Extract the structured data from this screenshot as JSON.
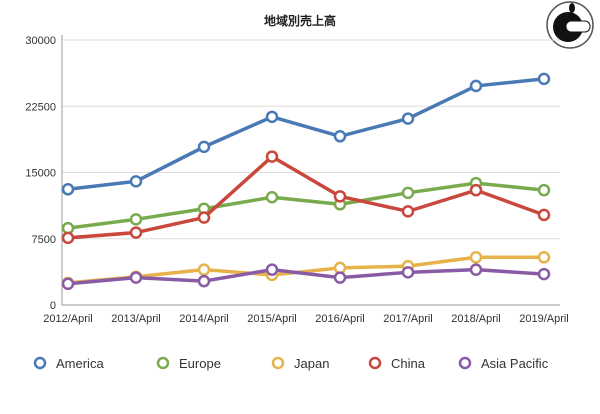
{
  "chart_data": {
    "type": "line",
    "title": "地域別売上高",
    "xlabel": "",
    "ylabel": "",
    "categories": [
      "2012/April",
      "2013/April",
      "2014/April",
      "2015/April",
      "2016/April",
      "2017/April",
      "2018/April",
      "2019/April"
    ],
    "yticks": [
      0,
      7500,
      15000,
      22500,
      30000
    ],
    "ylim": [
      0,
      30000
    ],
    "grid": true,
    "legend_position": "bottom",
    "series": [
      {
        "name": "America",
        "color": "#4a7ab5",
        "values": [
          13100,
          14000,
          17900,
          21300,
          19100,
          21100,
          24800,
          25600
        ]
      },
      {
        "name": "Europe",
        "color": "#79ab4e",
        "values": [
          8700,
          9700,
          10900,
          12200,
          11400,
          12700,
          13800,
          13000
        ]
      },
      {
        "name": "Japan",
        "color": "#e8b24a",
        "values": [
          2500,
          3200,
          4000,
          3400,
          4200,
          4400,
          5400,
          5400
        ]
      },
      {
        "name": "China",
        "color": "#c9473c",
        "values": [
          7600,
          8200,
          9900,
          16800,
          12300,
          10600,
          13000,
          10200
        ]
      },
      {
        "name": "Asia Pacific",
        "color": "#8a5ba5",
        "values": [
          2400,
          3100,
          2700,
          4000,
          3100,
          3700,
          4000,
          3500
        ]
      }
    ]
  }
}
